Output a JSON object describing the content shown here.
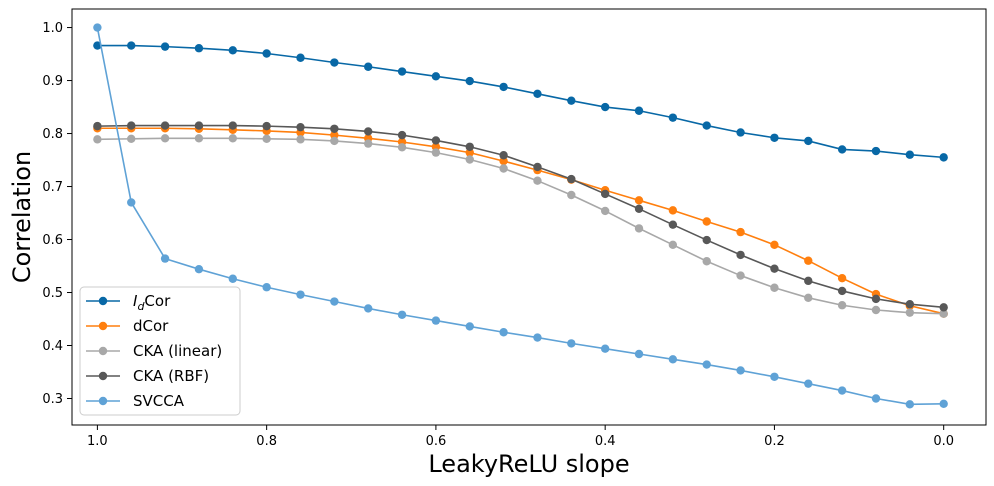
{
  "chart_data": {
    "type": "line",
    "xlabel": "LeakyReLU slope",
    "ylabel": "Correlation",
    "xlim": [
      1.03,
      -0.05
    ],
    "ylim": [
      0.25,
      1.035
    ],
    "x_reversed": true,
    "grid": false,
    "legend_position": "lower-left",
    "xticks": [
      1.0,
      0.8,
      0.6,
      0.4,
      0.2,
      0.0
    ],
    "xtick_labels": [
      "1.0",
      "0.8",
      "0.6",
      "0.4",
      "0.2",
      "0.0"
    ],
    "yticks": [
      0.3,
      0.4,
      0.5,
      0.6,
      0.7,
      0.8,
      0.9,
      1.0
    ],
    "ytick_labels": [
      "0.3",
      "0.4",
      "0.5",
      "0.6",
      "0.7",
      "0.8",
      "0.9",
      "1.0"
    ],
    "x": [
      1.0,
      0.96,
      0.92,
      0.88,
      0.84,
      0.8,
      0.76,
      0.72,
      0.68,
      0.64,
      0.6,
      0.56,
      0.52,
      0.48,
      0.44,
      0.4,
      0.36,
      0.32,
      0.28,
      0.24,
      0.2,
      0.16,
      0.12,
      0.08,
      0.04,
      0.0
    ],
    "series": [
      {
        "name": "IdCor",
        "label_main": "I",
        "label_sub": "d",
        "label_rest": "Cor",
        "color": "#0868a6",
        "values": [
          0.966,
          0.966,
          0.964,
          0.961,
          0.957,
          0.951,
          0.943,
          0.934,
          0.926,
          0.917,
          0.908,
          0.899,
          0.888,
          0.875,
          0.862,
          0.85,
          0.843,
          0.83,
          0.815,
          0.802,
          0.792,
          0.786,
          0.77,
          0.767,
          0.76,
          0.755
        ]
      },
      {
        "name": "dCor",
        "color": "#ff7f0e",
        "values": [
          0.81,
          0.81,
          0.81,
          0.809,
          0.807,
          0.805,
          0.802,
          0.797,
          0.791,
          0.784,
          0.775,
          0.764,
          0.748,
          0.731,
          0.713,
          0.693,
          0.674,
          0.655,
          0.634,
          0.614,
          0.59,
          0.56,
          0.527,
          0.497,
          0.475,
          0.46
        ]
      },
      {
        "name": "CKA (linear)",
        "color": "#a8a8a8",
        "values": [
          0.789,
          0.79,
          0.791,
          0.791,
          0.791,
          0.79,
          0.789,
          0.786,
          0.781,
          0.774,
          0.764,
          0.751,
          0.734,
          0.711,
          0.684,
          0.654,
          0.621,
          0.59,
          0.559,
          0.532,
          0.509,
          0.49,
          0.476,
          0.467,
          0.462,
          0.46
        ]
      },
      {
        "name": "CKA (RBF)",
        "color": "#585858",
        "values": [
          0.814,
          0.815,
          0.815,
          0.815,
          0.815,
          0.814,
          0.812,
          0.809,
          0.804,
          0.797,
          0.787,
          0.775,
          0.759,
          0.737,
          0.714,
          0.686,
          0.658,
          0.628,
          0.599,
          0.571,
          0.545,
          0.522,
          0.503,
          0.488,
          0.478,
          0.472
        ]
      },
      {
        "name": "SVCCA",
        "color": "#5fa2d6",
        "values": [
          1.0,
          0.67,
          0.564,
          0.544,
          0.526,
          0.51,
          0.496,
          0.483,
          0.47,
          0.458,
          0.447,
          0.436,
          0.425,
          0.415,
          0.404,
          0.394,
          0.384,
          0.374,
          0.364,
          0.353,
          0.341,
          0.328,
          0.315,
          0.3,
          0.289,
          0.29
        ]
      }
    ]
  }
}
